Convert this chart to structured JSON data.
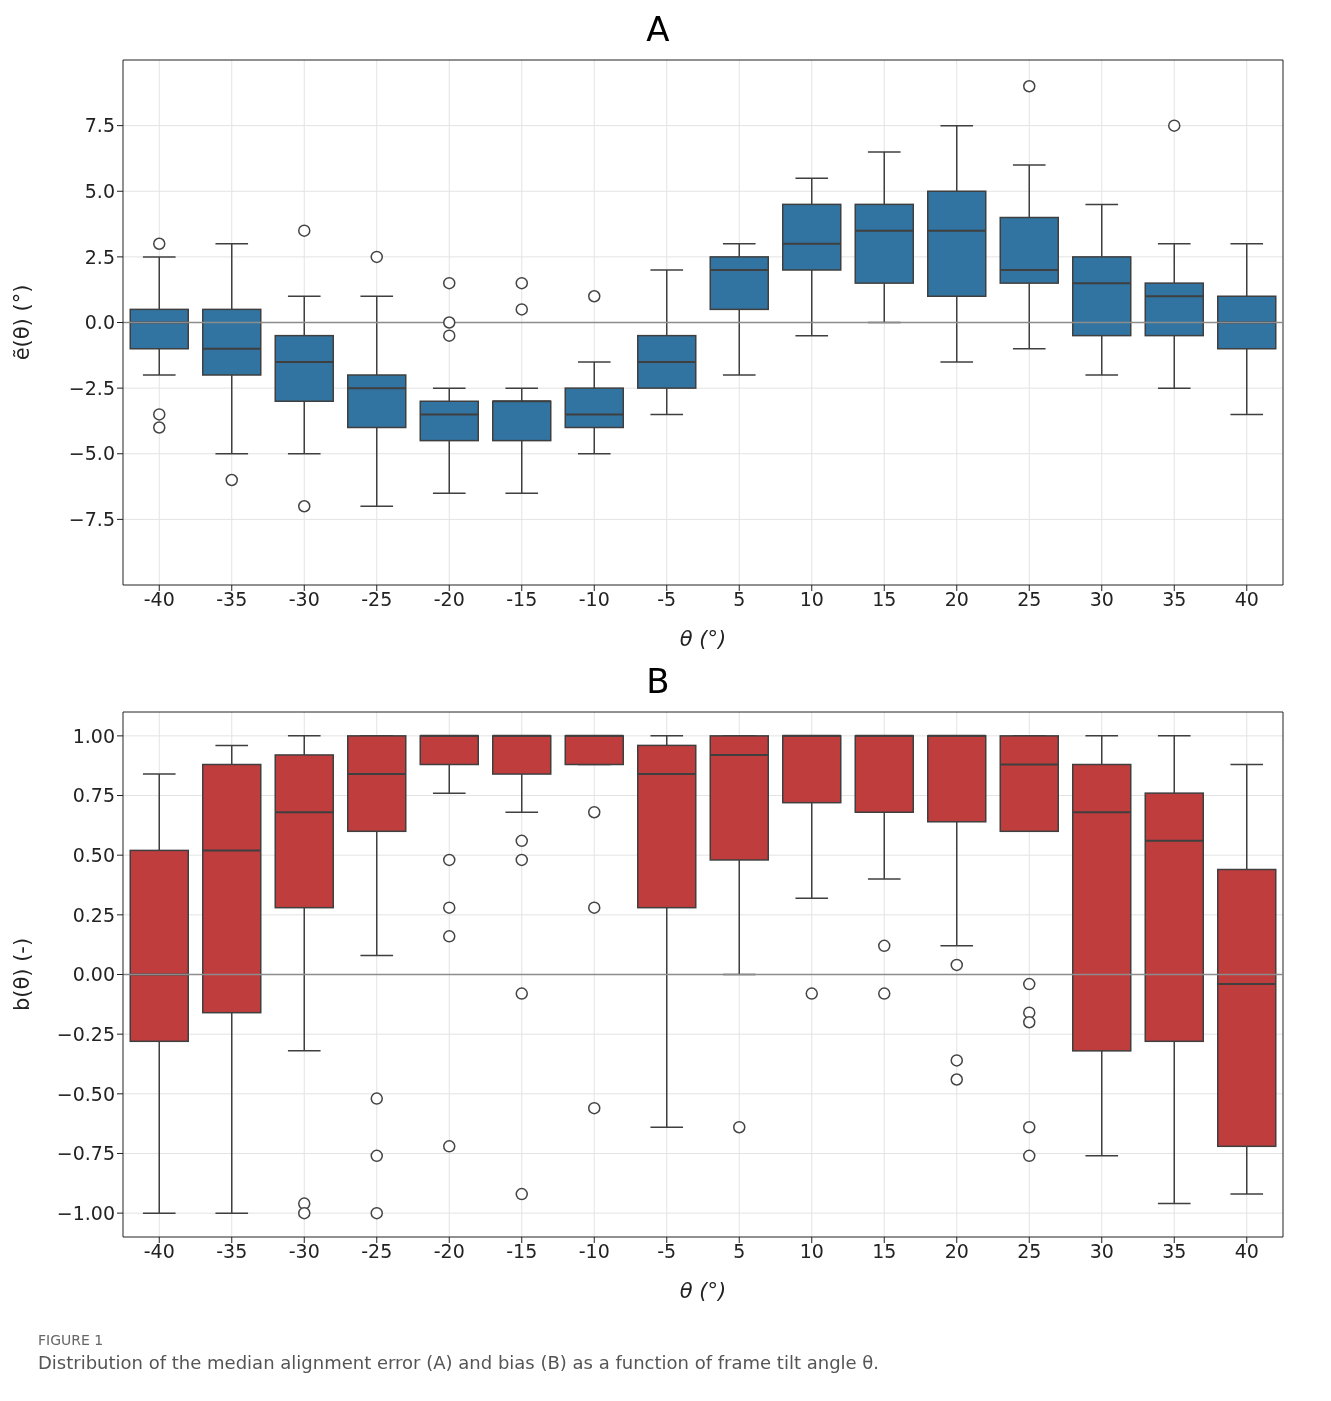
{
  "chart_data": [
    {
      "type": "box",
      "title": "A",
      "xlabel": "θ (°)",
      "ylabel": "ẽ(θ) (°)",
      "categories": [
        "-40",
        "-35",
        "-30",
        "-25",
        "-20",
        "-15",
        "-10",
        "-5",
        "5",
        "10",
        "15",
        "20",
        "25",
        "30",
        "35",
        "40"
      ],
      "series": [
        {
          "color": "#3274a1",
          "boxes": [
            {
              "low": -2,
              "q1": -1,
              "median": 0,
              "q3": 0.5,
              "high": 2.5,
              "outliers": [
                3,
                -3.5,
                -4
              ]
            },
            {
              "low": -5,
              "q1": -2,
              "median": -1,
              "q3": 0.5,
              "high": 3,
              "outliers": [
                -6
              ]
            },
            {
              "low": -5,
              "q1": -3,
              "median": -1.5,
              "q3": -0.5,
              "high": 1,
              "outliers": [
                3.5,
                -7
              ]
            },
            {
              "low": -7,
              "q1": -4,
              "median": -2.5,
              "q3": -2,
              "high": 1,
              "outliers": [
                2.5
              ]
            },
            {
              "low": -6.5,
              "q1": -4.5,
              "median": -3.5,
              "q3": -3,
              "high": -2.5,
              "outliers": [
                1.5,
                0,
                -0.5
              ]
            },
            {
              "low": -6.5,
              "q1": -4.5,
              "median": -3,
              "q3": -3,
              "high": -2.5,
              "outliers": [
                1.5,
                0.5
              ]
            },
            {
              "low": -5,
              "q1": -4,
              "median": -3.5,
              "q3": -2.5,
              "high": -1.5,
              "outliers": [
                1
              ]
            },
            {
              "low": -3.5,
              "q1": -2.5,
              "median": -1.5,
              "q3": -0.5,
              "high": 2
            },
            {
              "low": -2,
              "q1": 0.5,
              "median": 2,
              "q3": 2.5,
              "high": 3
            },
            {
              "low": -0.5,
              "q1": 2,
              "median": 3,
              "q3": 4.5,
              "high": 5.5
            },
            {
              "low": 0,
              "q1": 1.5,
              "median": 3.5,
              "q3": 4.5,
              "high": 6.5
            },
            {
              "low": -1.5,
              "q1": 1,
              "median": 3.5,
              "q3": 5,
              "high": 7.5
            },
            {
              "low": -1,
              "q1": 1.5,
              "median": 2,
              "q3": 4,
              "high": 6,
              "outliers": [
                9
              ]
            },
            {
              "low": -2,
              "q1": -0.5,
              "median": 1.5,
              "q3": 2.5,
              "high": 4.5
            },
            {
              "low": -2.5,
              "q1": -0.5,
              "median": 1,
              "q3": 1.5,
              "high": 3,
              "outliers": [
                7.5
              ]
            },
            {
              "low": -3.5,
              "q1": -1,
              "median": 0,
              "q3": 1,
              "high": 3
            }
          ]
        }
      ],
      "ylim": [
        -10,
        10
      ],
      "yticks": [
        {
          "value": -7.5,
          "label": "−7.5"
        },
        {
          "value": -5,
          "label": "−5.0"
        },
        {
          "value": -2.5,
          "label": "−2.5"
        },
        {
          "value": 0,
          "label": "0.0"
        },
        {
          "value": 2.5,
          "label": "2.5"
        },
        {
          "value": 5,
          "label": "5.0"
        },
        {
          "value": 7.5,
          "label": "7.5"
        }
      ],
      "grid": true,
      "ref_lines": [
        {
          "axis": "y",
          "value": 0,
          "color": "#8c8c8c"
        }
      ]
    },
    {
      "type": "box",
      "title": "B",
      "xlabel": "θ (°)",
      "ylabel": "b(θ) (-)",
      "categories": [
        "-40",
        "-35",
        "-30",
        "-25",
        "-20",
        "-15",
        "-10",
        "-5",
        "5",
        "10",
        "15",
        "20",
        "25",
        "30",
        "35",
        "40"
      ],
      "series": [
        {
          "color": "#c03d3e",
          "boxes": [
            {
              "low": -1,
              "q1": -0.28,
              "median": 0,
              "q3": 0.52,
              "high": 0.84
            },
            {
              "low": -1,
              "q1": -0.16,
              "median": 0.52,
              "q3": 0.88,
              "high": 0.96
            },
            {
              "low": -0.32,
              "q1": 0.28,
              "median": 0.68,
              "q3": 0.92,
              "high": 1,
              "outliers": [
                -0.96,
                -1
              ]
            },
            {
              "low": 0.08,
              "q1": 0.6,
              "median": 0.84,
              "q3": 1,
              "high": 1,
              "outliers": [
                -0.52,
                -0.76,
                -1
              ]
            },
            {
              "low": 0.76,
              "q1": 0.88,
              "median": 1,
              "q3": 1,
              "high": 1,
              "outliers": [
                0.48,
                0.28,
                0.16,
                -0.72
              ]
            },
            {
              "low": 0.68,
              "q1": 0.84,
              "median": 1,
              "q3": 1,
              "high": 1,
              "outliers": [
                0.56,
                0.48,
                -0.08,
                -0.92
              ]
            },
            {
              "low": 0.88,
              "q1": 0.88,
              "median": 1,
              "q3": 1,
              "high": 1,
              "outliers": [
                0.68,
                0.28,
                -0.56
              ]
            },
            {
              "low": -0.64,
              "q1": 0.28,
              "median": 0.84,
              "q3": 0.96,
              "high": 1
            },
            {
              "low": 0,
              "q1": 0.48,
              "median": 0.92,
              "q3": 1,
              "high": 1,
              "outliers": [
                -0.64
              ]
            },
            {
              "low": 0.32,
              "q1": 0.72,
              "median": 1,
              "q3": 1,
              "high": 1,
              "outliers": [
                -0.08
              ]
            },
            {
              "low": 0.4,
              "q1": 0.68,
              "median": 1,
              "q3": 1,
              "high": 1,
              "outliers": [
                0.12,
                -0.08
              ]
            },
            {
              "low": 0.12,
              "q1": 0.64,
              "median": 1,
              "q3": 1,
              "high": 1,
              "outliers": [
                0.04,
                -0.36,
                -0.44
              ]
            },
            {
              "low": 0.6,
              "q1": 0.6,
              "median": 0.88,
              "q3": 1,
              "high": 1,
              "outliers": [
                -0.04,
                -0.16,
                -0.2,
                -0.64,
                -0.76
              ]
            },
            {
              "low": -0.76,
              "q1": -0.32,
              "median": 0.68,
              "q3": 0.88,
              "high": 1
            },
            {
              "low": -0.96,
              "q1": -0.28,
              "median": 0.56,
              "q3": 0.76,
              "high": 1
            },
            {
              "low": -0.92,
              "q1": -0.72,
              "median": -0.04,
              "q3": 0.44,
              "high": 0.88
            }
          ]
        }
      ],
      "ylim": [
        -1.1,
        1.1
      ],
      "yticks": [
        {
          "value": -1,
          "label": "−1.00"
        },
        {
          "value": -0.75,
          "label": "−0.75"
        },
        {
          "value": -0.5,
          "label": "−0.50"
        },
        {
          "value": -0.25,
          "label": "−0.25"
        },
        {
          "value": 0,
          "label": "0.00"
        },
        {
          "value": 0.25,
          "label": "0.25"
        },
        {
          "value": 0.5,
          "label": "0.50"
        },
        {
          "value": 0.75,
          "label": "0.75"
        },
        {
          "value": 1,
          "label": "1.00"
        }
      ],
      "grid": true,
      "ref_lines": [
        {
          "axis": "y",
          "value": 0,
          "color": "#8c8c8c"
        }
      ],
      "annotations": [
        "FIGURE 1",
        "Distribution of the median alignment error (A) and bias (B) as a function of frame tilt angle θ."
      ]
    }
  ]
}
